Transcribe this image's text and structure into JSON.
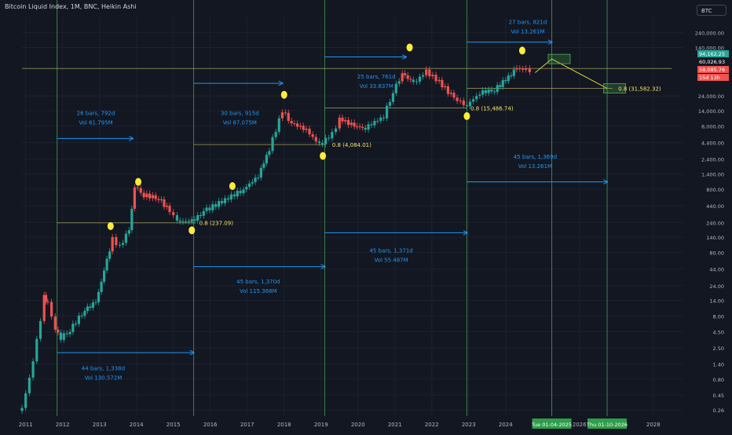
{
  "header": {
    "title": "Bitcoin Liquid Index, 1M, BNC, Heikin Ashi",
    "symbol": "BTC"
  },
  "chart_data": {
    "type": "candlestick",
    "title": "Bitcoin Liquid Index, 1M, BNC, Heikin Ashi",
    "y_scale": "log",
    "ylim": [
      0.22,
      420000
    ],
    "xlim": [
      2010.9,
      2028.6
    ],
    "x_tick_labels": [
      "2011",
      "2012",
      "2013",
      "2014",
      "2015",
      "2016",
      "2017",
      "2018",
      "2019",
      "2020",
      "2021",
      "2022",
      "2023",
      "2024",
      "2026",
      "2028"
    ],
    "x_tick_values": [
      2011,
      2012,
      2013,
      2014,
      2015,
      2016,
      2017,
      2018,
      2019,
      2020,
      2021,
      2022,
      2023,
      2024,
      2026,
      2028
    ],
    "x_date_badges": [
      {
        "label": "Tue 01-04-2025",
        "x": 2025.25
      },
      {
        "label": "Thu 01-10-2026",
        "x": 2026.75
      }
    ],
    "y_tick_labels": [
      "240,000.00",
      "140,000.00",
      "24,000.00",
      "14,000.00",
      "8,000.00",
      "4,400.00",
      "2,400.00",
      "1,400.00",
      "800.00",
      "440.00",
      "240.00",
      "140.00",
      "80.00",
      "44.00",
      "24.00",
      "14.00",
      "8.00",
      "4.50",
      "2.50",
      "1.40",
      "0.80",
      "0.45",
      "0.26"
    ],
    "y_tick_values": [
      240000,
      140000,
      24000,
      14000,
      8000,
      4400,
      2400,
      1400,
      800,
      440,
      240,
      140,
      80,
      44,
      24,
      14,
      8,
      4.5,
      2.5,
      1.4,
      0.8,
      0.45,
      0.26
    ],
    "price_badges": [
      {
        "label": "94,162.25",
        "value": 94162.25,
        "color": "#26a69a"
      },
      {
        "label": "60,026.93",
        "value": 60026.93,
        "color": "#ffffff"
      },
      {
        "label": "58,085.76",
        "value": 58085.76,
        "color": "#ef5350"
      },
      {
        "label": "15d 13h",
        "value": 44000,
        "color": "#ef5350"
      }
    ],
    "candle_points": [
      {
        "x": 2010.9,
        "v": 0.28,
        "d": "up"
      },
      {
        "x": 2011.1,
        "v": 0.8,
        "d": "up"
      },
      {
        "x": 2011.3,
        "v": 3.2,
        "d": "up"
      },
      {
        "x": 2011.5,
        "v": 16,
        "d": "up"
      },
      {
        "x": 2011.6,
        "v": 13,
        "d": "down"
      },
      {
        "x": 2011.8,
        "v": 5,
        "d": "down"
      },
      {
        "x": 2011.95,
        "v": 3.6,
        "d": "down"
      },
      {
        "x": 2012.2,
        "v": 4.8,
        "d": "up"
      },
      {
        "x": 2012.6,
        "v": 10,
        "d": "up"
      },
      {
        "x": 2012.9,
        "v": 13,
        "d": "up"
      },
      {
        "x": 2013.2,
        "v": 60,
        "d": "up"
      },
      {
        "x": 2013.35,
        "v": 130,
        "d": "up"
      },
      {
        "x": 2013.55,
        "v": 100,
        "d": "down"
      },
      {
        "x": 2013.8,
        "v": 180,
        "d": "up"
      },
      {
        "x": 2013.95,
        "v": 900,
        "d": "up"
      },
      {
        "x": 2014.2,
        "v": 650,
        "d": "down"
      },
      {
        "x": 2014.6,
        "v": 580,
        "d": "down"
      },
      {
        "x": 2014.9,
        "v": 360,
        "d": "down"
      },
      {
        "x": 2015.1,
        "v": 250,
        "d": "down"
      },
      {
        "x": 2015.5,
        "v": 250,
        "d": "up"
      },
      {
        "x": 2015.9,
        "v": 380,
        "d": "up"
      },
      {
        "x": 2016.4,
        "v": 550,
        "d": "up"
      },
      {
        "x": 2016.9,
        "v": 800,
        "d": "up"
      },
      {
        "x": 2017.3,
        "v": 1300,
        "d": "up"
      },
      {
        "x": 2017.6,
        "v": 3500,
        "d": "up"
      },
      {
        "x": 2017.95,
        "v": 14000,
        "d": "up"
      },
      {
        "x": 2018.2,
        "v": 9000,
        "d": "down"
      },
      {
        "x": 2018.6,
        "v": 7000,
        "d": "down"
      },
      {
        "x": 2018.95,
        "v": 4000,
        "d": "down"
      },
      {
        "x": 2019.3,
        "v": 6000,
        "d": "up"
      },
      {
        "x": 2019.5,
        "v": 10500,
        "d": "up"
      },
      {
        "x": 2019.9,
        "v": 8000,
        "d": "down"
      },
      {
        "x": 2020.2,
        "v": 7500,
        "d": "up"
      },
      {
        "x": 2020.7,
        "v": 11500,
        "d": "up"
      },
      {
        "x": 2020.95,
        "v": 28000,
        "d": "up"
      },
      {
        "x": 2021.2,
        "v": 55000,
        "d": "up"
      },
      {
        "x": 2021.5,
        "v": 38000,
        "d": "down"
      },
      {
        "x": 2021.85,
        "v": 58000,
        "d": "up"
      },
      {
        "x": 2022.2,
        "v": 40000,
        "d": "down"
      },
      {
        "x": 2022.6,
        "v": 22000,
        "d": "down"
      },
      {
        "x": 2022.95,
        "v": 17000,
        "d": "down"
      },
      {
        "x": 2023.3,
        "v": 27000,
        "d": "up"
      },
      {
        "x": 2023.7,
        "v": 30000,
        "d": "up"
      },
      {
        "x": 2024.0,
        "v": 43000,
        "d": "up"
      },
      {
        "x": 2024.3,
        "v": 65000,
        "d": "up"
      },
      {
        "x": 2024.55,
        "v": 62000,
        "d": "down"
      },
      {
        "x": 2024.75,
        "v": 58000,
        "d": "down"
      }
    ],
    "vertical_lines": [
      2011.85,
      2015.55,
      2019.1,
      2022.95,
      2025.25,
      2026.75
    ],
    "horizontal_lines": [
      {
        "value": 237.09,
        "x1": 2011.85,
        "x2": 2015.6
      },
      {
        "value": 4084.01,
        "x1": 2015.55,
        "x2": 2019.1
      },
      {
        "value": 15486.74,
        "x1": 2019.1,
        "x2": 2022.95
      },
      {
        "value": 31582.32,
        "x1": 2022.95,
        "x2": 2026.9
      },
      {
        "value": 65000,
        "x1": 2010.9,
        "x2": 2028.5
      }
    ],
    "annotations": [
      {
        "text": "26 bars, 792d",
        "sub": "Vol 61.795M",
        "x": 2012.9,
        "value": 12000,
        "arrow": {
          "x1": 2011.85,
          "x2": 2013.9,
          "value": 5100
        }
      },
      {
        "text": "44 bars, 1,338d",
        "sub": "Vol 130.572M",
        "x": 2013.1,
        "value": 1.1,
        "arrow": {
          "x1": 2011.85,
          "x2": 2015.55,
          "value": 2.1
        }
      },
      {
        "text": "30 bars, 915d",
        "sub": "Vol 87.075M",
        "x": 2016.8,
        "value": 12000,
        "arrow": {
          "x1": 2015.55,
          "x2": 2017.95,
          "value": 38000
        }
      },
      {
        "text": "45 bars, 1,370d",
        "sub": "Vol 115.368M",
        "x": 2017.3,
        "value": 26,
        "arrow": {
          "x1": 2015.55,
          "x2": 2019.1,
          "value": 48
        }
      },
      {
        "text": "25 bars, 761d",
        "sub": "Vol 33.837M",
        "x": 2020.5,
        "value": 45000,
        "arrow": {
          "x1": 2019.1,
          "x2": 2021.3,
          "value": 99000
        }
      },
      {
        "text": "45 bars, 1,371d",
        "sub": "Vol 55.487M",
        "x": 2020.9,
        "value": 80,
        "arrow": {
          "x1": 2019.1,
          "x2": 2022.95,
          "value": 165
        }
      },
      {
        "text": "27 bars, 821d",
        "sub": "Vol 13.261M",
        "x": 2024.6,
        "value": 330000,
        "arrow": {
          "x1": 2022.95,
          "x2": 2025.25,
          "value": 170000
        }
      },
      {
        "text": "45 bars, 1,369d",
        "sub": "Vol 13.261M",
        "x": 2024.8,
        "value": 2450,
        "arrow": {
          "x1": 2022.95,
          "x2": 2026.75,
          "value": 1050
        }
      }
    ],
    "fib_labels": [
      {
        "text": "0.8 (237.09)",
        "x": 2015.7,
        "value": 237.09
      },
      {
        "text": "0.8 (4,084.01)",
        "x": 2019.3,
        "value": 4084.01
      },
      {
        "text": "0.8 (15,486.74)",
        "x": 2023.05,
        "value": 15486.74
      },
      {
        "text": "0.8 (31,582.32)",
        "x": 2027.05,
        "value": 31582.32
      }
    ],
    "circles": [
      {
        "x": 2013.3,
        "value": 210
      },
      {
        "x": 2014.05,
        "value": 1050
      },
      {
        "x": 2015.5,
        "value": 180
      },
      {
        "x": 2016.6,
        "value": 900
      },
      {
        "x": 2018.0,
        "value": 25000
      },
      {
        "x": 2019.05,
        "value": 2700
      },
      {
        "x": 2021.4,
        "value": 140000
      },
      {
        "x": 2022.95,
        "value": 11500
      },
      {
        "x": 2024.45,
        "value": 125000
      }
    ],
    "projection": {
      "boxes": [
        {
          "x": 2025.45,
          "value": 92000
        },
        {
          "x": 2026.95,
          "value": 31582
        }
      ],
      "path": [
        {
          "x": 2024.8,
          "value": 56000
        },
        {
          "x": 2025.25,
          "value": 92000
        },
        {
          "x": 2026.75,
          "value": 31582
        }
      ]
    }
  }
}
